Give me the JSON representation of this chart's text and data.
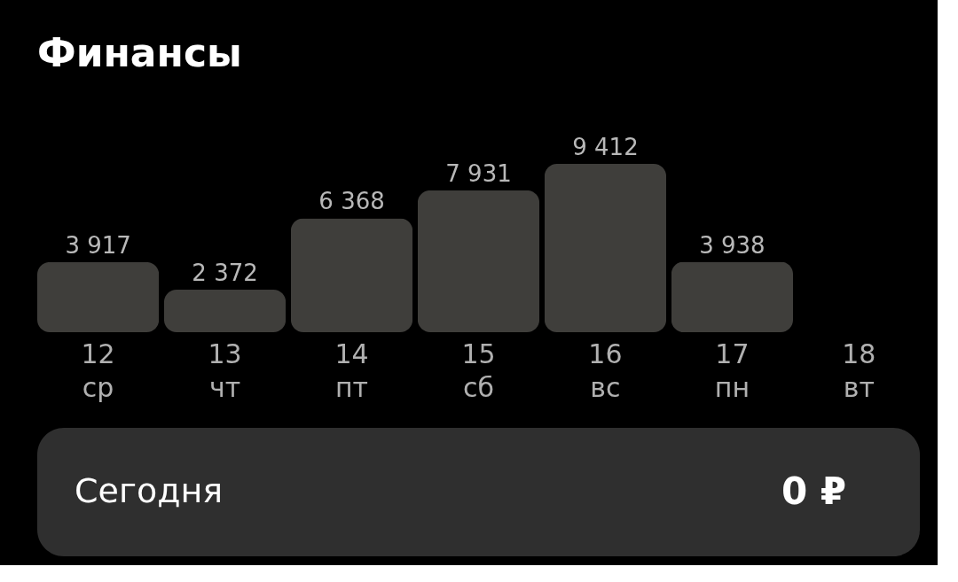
{
  "chart_data": {
    "type": "bar",
    "title": "Финансы",
    "categories": [
      "12 ср",
      "13 чт",
      "14 пт",
      "15 сб",
      "16 вс",
      "17 пн",
      "18 вт"
    ],
    "values": [
      3917,
      2372,
      6368,
      7931,
      9412,
      3938,
      0
    ],
    "colors": [
      "#3f3e3b",
      "#3f3e3b",
      "#3f3e3b",
      "#3f3e3b",
      "#3f3e3b",
      "#3f3e3b",
      "#7fa3f0"
    ],
    "value_labels": [
      "3 917",
      "2 372",
      "6 368",
      "7 931",
      "9 412",
      "3 938",
      null
    ],
    "annotations": [
      "Сегодня",
      "0 ₽"
    ]
  }
}
